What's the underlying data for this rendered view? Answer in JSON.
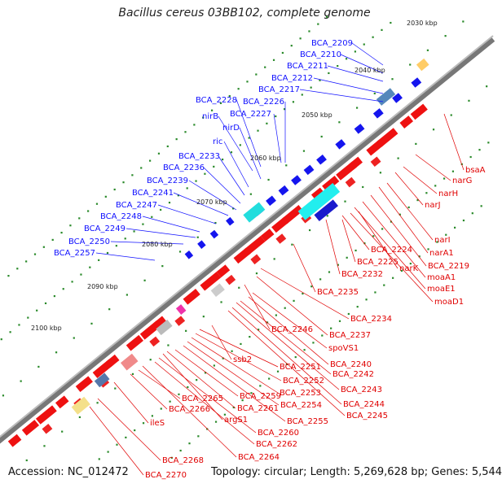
{
  "title": "Bacillus cereus 03BB102, complete genome",
  "accession": "Accession: NC_012472",
  "stats": "Topology: circular; Length: 5,269,628 bp; Genes: 5,544",
  "colors": {
    "blue_label": "#1010ff",
    "red_label": "#e00000",
    "backbone": "#888888"
  },
  "kbp_marks": [
    {
      "text": "2030 kbp"
    },
    {
      "text": "2040 kbp"
    },
    {
      "text": "2050 kbp"
    },
    {
      "text": "2060 kbp"
    },
    {
      "text": "2070 kbp"
    },
    {
      "text": "2080 kbp"
    },
    {
      "text": "2090 kbp"
    },
    {
      "text": "2100 kbp"
    }
  ],
  "blue_labels": [
    "BCA_2209",
    "BCA_2210",
    "BCA_2211",
    "BCA_2212",
    "BCA_2217",
    "BCA_2226",
    "BCA_2227",
    "BCA_2228",
    "nirB",
    "nirD",
    "ric",
    "BCA_2233",
    "BCA_2236",
    "BCA_2239",
    "BCA_2241",
    "BCA_2247",
    "BCA_2248",
    "BCA_2249",
    "BCA_2250",
    "BCA_2257"
  ],
  "red_labels": [
    "bsaA",
    "narG",
    "narH",
    "narJ",
    "narI",
    "narA1",
    "BCA_2219",
    "moaA1",
    "moaE1",
    "moaD1",
    "BCA_2224",
    "BCA_2225",
    "narK",
    "BCA_2232",
    "BCA_2235",
    "BCA_2234",
    "BCA_2237",
    "BCA_2246",
    "spoVS1",
    "BCA_2240",
    "BCA_2242",
    "BCA_2243",
    "BCA_2244",
    "BCA_2245",
    "ssb2",
    "BCA_2251",
    "BCA_2252",
    "BCA_2253",
    "BCA_2254",
    "BCA_2255",
    "BCA_2259",
    "BCA_2261",
    "argS1",
    "BCA_2260",
    "BCA_2262",
    "BCA_2264",
    "BCA_2265",
    "BCA_2266",
    "ileS",
    "BCA_2268",
    "BCA_2270"
  ]
}
